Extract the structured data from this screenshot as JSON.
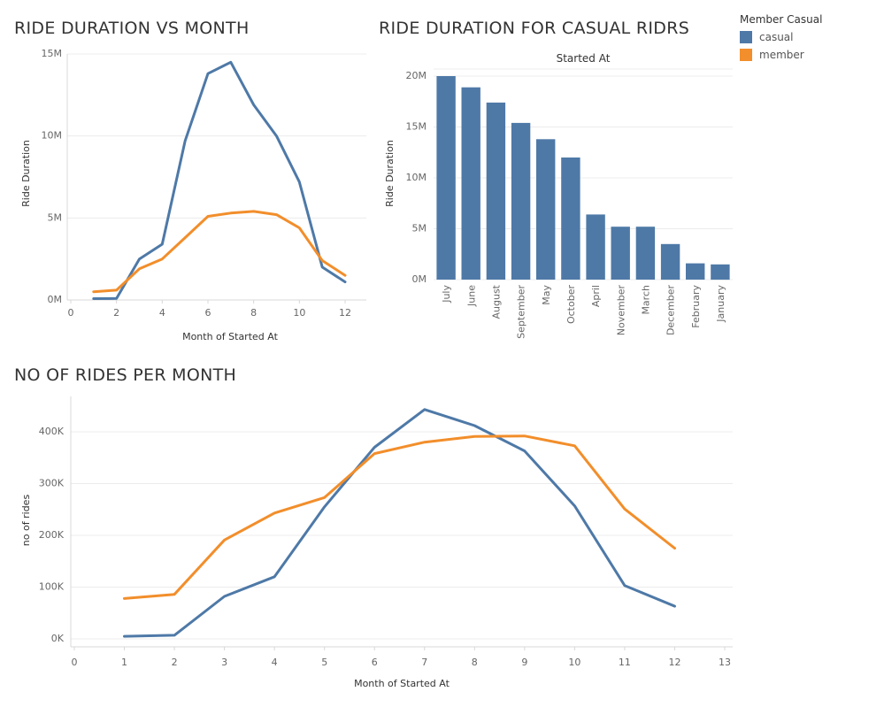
{
  "colors": {
    "casual": "#4e79a7",
    "member": "#f28e2b"
  },
  "titles": {
    "top_left": "RIDE DURATION VS MONTH",
    "top_right": "RIDE DURATION FOR CASUAL RIDRS",
    "bottom": "NO OF RIDES PER MONTH"
  },
  "legend": {
    "title": "Member Casual",
    "items": [
      {
        "label": "casual",
        "color": "#4e79a7"
      },
      {
        "label": "member",
        "color": "#f28e2b"
      }
    ]
  },
  "chart_data": [
    {
      "id": "duration_line",
      "type": "line",
      "title": "RIDE DURATION VS MONTH",
      "xlabel": "Month of Started At",
      "ylabel": "Ride Duration",
      "xlim": [
        0,
        12
      ],
      "ylim": [
        0,
        15000000
      ],
      "x_ticks": [
        0,
        2,
        4,
        6,
        8,
        10,
        12
      ],
      "y_ticks": [
        0,
        5000000,
        10000000,
        15000000
      ],
      "y_tick_labels": [
        "0M",
        "5M",
        "10M",
        "15M"
      ],
      "x": [
        1,
        2,
        3,
        4,
        5,
        6,
        7,
        8,
        9,
        10,
        11,
        12
      ],
      "series": [
        {
          "name": "casual",
          "values": [
            80000,
            90000,
            2500000,
            3400000,
            9700000,
            13800000,
            14500000,
            11900000,
            10000000,
            7200000,
            2000000,
            1100000
          ]
        },
        {
          "name": "member",
          "values": [
            500000,
            600000,
            1900000,
            2500000,
            3800000,
            5100000,
            5300000,
            5400000,
            5200000,
            4400000,
            2400000,
            1500000
          ]
        }
      ]
    },
    {
      "id": "casual_duration_bar",
      "type": "bar",
      "title": "RIDE DURATION FOR CASUAL RIDRS",
      "subtitle": "Started At",
      "ylabel": "Ride Duration",
      "ylim": [
        0,
        20000000
      ],
      "y_ticks": [
        0,
        5000000,
        10000000,
        15000000,
        20000000
      ],
      "y_tick_labels": [
        "0M",
        "5M",
        "10M",
        "15M",
        "20M"
      ],
      "categories": [
        "July",
        "June",
        "August",
        "September",
        "May",
        "October",
        "April",
        "November",
        "March",
        "December",
        "February",
        "January"
      ],
      "values": [
        20000000,
        18900000,
        17400000,
        15400000,
        13800000,
        12000000,
        6400000,
        5200000,
        5200000,
        3500000,
        1600000,
        1500000
      ]
    },
    {
      "id": "rides_line",
      "type": "line",
      "title": "NO OF RIDES PER MONTH",
      "xlabel": "Month of Started At",
      "ylabel": "no of rides",
      "xlim": [
        0,
        13
      ],
      "ylim": [
        0,
        400000
      ],
      "x_ticks": [
        0,
        1,
        2,
        3,
        4,
        5,
        6,
        7,
        8,
        9,
        10,
        11,
        12,
        13
      ],
      "y_ticks": [
        0,
        100000,
        200000,
        300000,
        400000
      ],
      "y_tick_labels": [
        "0K",
        "100K",
        "200K",
        "300K",
        "400K"
      ],
      "x": [
        1,
        2,
        3,
        4,
        5,
        6,
        7,
        8,
        9,
        10,
        11,
        12
      ],
      "series": [
        {
          "name": "casual",
          "values": [
            5000,
            7000,
            82000,
            120000,
            255000,
            370000,
            443000,
            412000,
            363000,
            257000,
            103000,
            63000
          ]
        },
        {
          "name": "member",
          "values": [
            78000,
            86000,
            191000,
            243000,
            273000,
            358000,
            380000,
            391000,
            392000,
            373000,
            251000,
            175000
          ]
        }
      ]
    }
  ]
}
